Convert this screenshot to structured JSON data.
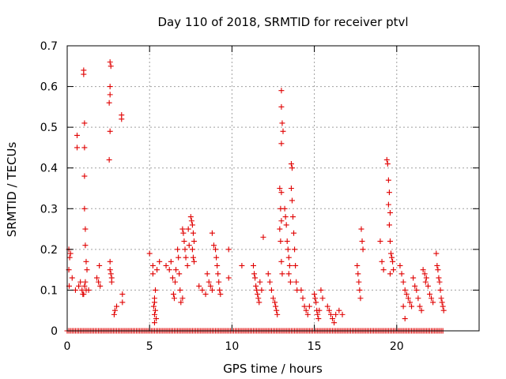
{
  "chart_data": {
    "type": "scatter",
    "title": "Day 110 of 2018, SRMTID for receiver ptvl",
    "xlabel": "GPS time / hours",
    "ylabel": "SRMTID / TECUs",
    "xlim": [
      0,
      25
    ],
    "ylim": [
      0,
      0.7
    ],
    "x_ticks": [
      0,
      5,
      10,
      15,
      20
    ],
    "y_ticks": [
      0,
      0.1,
      0.2,
      0.3,
      0.4,
      0.5,
      0.6,
      0.7
    ],
    "x_tick_labels": [
      "0",
      "5",
      "10",
      "15",
      "20"
    ],
    "y_tick_labels": [
      "0",
      "0.1",
      "0.2",
      "0.3",
      "0.4",
      "0.5",
      "0.6",
      "0.7"
    ],
    "grid": true,
    "marker": "+",
    "series": [
      {
        "name": "SRMTID",
        "color": "#e00000",
        "points": [
          [
            0.1,
            0.2
          ],
          [
            0.15,
            0.18
          ],
          [
            0.2,
            0.19
          ],
          [
            0.1,
            0.15
          ],
          [
            0.12,
            0.11
          ],
          [
            0.3,
            0.13
          ],
          [
            0.6,
            0.48
          ],
          [
            0.6,
            0.45
          ],
          [
            0.5,
            0.1
          ],
          [
            0.7,
            0.11
          ],
          [
            0.8,
            0.12
          ],
          [
            0.9,
            0.1
          ],
          [
            0.95,
            0.09
          ],
          [
            1.0,
            0.09
          ],
          [
            1.05,
            0.11
          ],
          [
            1.1,
            0.12
          ],
          [
            1.0,
            0.64
          ],
          [
            1.0,
            0.63
          ],
          [
            1.05,
            0.51
          ],
          [
            1.05,
            0.45
          ],
          [
            1.05,
            0.38
          ],
          [
            1.05,
            0.3
          ],
          [
            1.1,
            0.25
          ],
          [
            1.1,
            0.21
          ],
          [
            1.15,
            0.17
          ],
          [
            1.2,
            0.15
          ],
          [
            1.15,
            0.1
          ],
          [
            1.3,
            0.1
          ],
          [
            1.8,
            0.13
          ],
          [
            1.9,
            0.12
          ],
          [
            1.95,
            0.16
          ],
          [
            2.0,
            0.11
          ],
          [
            2.6,
            0.66
          ],
          [
            2.65,
            0.65
          ],
          [
            2.6,
            0.6
          ],
          [
            2.6,
            0.58
          ],
          [
            2.55,
            0.56
          ],
          [
            2.6,
            0.49
          ],
          [
            2.55,
            0.42
          ],
          [
            2.6,
            0.17
          ],
          [
            2.6,
            0.15
          ],
          [
            2.65,
            0.14
          ],
          [
            2.7,
            0.13
          ],
          [
            2.7,
            0.12
          ],
          [
            2.9,
            0.05
          ],
          [
            2.85,
            0.04
          ],
          [
            3.0,
            0.06
          ],
          [
            3.3,
            0.53
          ],
          [
            3.3,
            0.52
          ],
          [
            3.35,
            0.07
          ],
          [
            3.35,
            0.09
          ],
          [
            5.0,
            0.19
          ],
          [
            5.2,
            0.16
          ],
          [
            5.2,
            0.14
          ],
          [
            5.3,
            0.08
          ],
          [
            5.3,
            0.07
          ],
          [
            5.25,
            0.06
          ],
          [
            5.35,
            0.05
          ],
          [
            5.3,
            0.04
          ],
          [
            5.4,
            0.03
          ],
          [
            5.3,
            0.02
          ],
          [
            5.35,
            0.1
          ],
          [
            5.45,
            0.15
          ],
          [
            5.6,
            0.17
          ],
          [
            6.0,
            0.16
          ],
          [
            6.2,
            0.15
          ],
          [
            6.3,
            0.17
          ],
          [
            6.4,
            0.13
          ],
          [
            6.45,
            0.09
          ],
          [
            6.5,
            0.08
          ],
          [
            6.55,
            0.12
          ],
          [
            6.6,
            0.15
          ],
          [
            6.7,
            0.2
          ],
          [
            6.75,
            0.18
          ],
          [
            6.8,
            0.14
          ],
          [
            6.85,
            0.1
          ],
          [
            6.9,
            0.07
          ],
          [
            7.0,
            0.25
          ],
          [
            7.05,
            0.24
          ],
          [
            7.1,
            0.22
          ],
          [
            7.15,
            0.2
          ],
          [
            7.2,
            0.18
          ],
          [
            7.3,
            0.16
          ],
          [
            7.35,
            0.25
          ],
          [
            7.4,
            0.21
          ],
          [
            7.0,
            0.08
          ],
          [
            7.5,
            0.28
          ],
          [
            7.55,
            0.27
          ],
          [
            7.6,
            0.26
          ],
          [
            7.65,
            0.24
          ],
          [
            7.7,
            0.22
          ],
          [
            7.6,
            0.2
          ],
          [
            7.65,
            0.18
          ],
          [
            7.7,
            0.17
          ],
          [
            8.0,
            0.11
          ],
          [
            8.2,
            0.1
          ],
          [
            8.4,
            0.09
          ],
          [
            8.5,
            0.14
          ],
          [
            8.6,
            0.12
          ],
          [
            8.7,
            0.11
          ],
          [
            8.8,
            0.1
          ],
          [
            8.8,
            0.24
          ],
          [
            8.9,
            0.21
          ],
          [
            9.0,
            0.2
          ],
          [
            9.05,
            0.18
          ],
          [
            9.1,
            0.16
          ],
          [
            9.15,
            0.14
          ],
          [
            9.2,
            0.12
          ],
          [
            9.25,
            0.1
          ],
          [
            9.3,
            0.09
          ],
          [
            9.8,
            0.2
          ],
          [
            9.8,
            0.13
          ],
          [
            10.6,
            0.16
          ],
          [
            11.3,
            0.16
          ],
          [
            11.35,
            0.14
          ],
          [
            11.4,
            0.13
          ],
          [
            11.45,
            0.11
          ],
          [
            11.5,
            0.1
          ],
          [
            11.55,
            0.09
          ],
          [
            11.6,
            0.08
          ],
          [
            11.65,
            0.07
          ],
          [
            11.7,
            0.12
          ],
          [
            11.8,
            0.1
          ],
          [
            11.9,
            0.23
          ],
          [
            12.2,
            0.14
          ],
          [
            12.3,
            0.12
          ],
          [
            12.4,
            0.1
          ],
          [
            12.5,
            0.08
          ],
          [
            12.6,
            0.07
          ],
          [
            12.65,
            0.06
          ],
          [
            12.7,
            0.05
          ],
          [
            12.75,
            0.04
          ],
          [
            12.9,
            0.35
          ],
          [
            13.0,
            0.34
          ],
          [
            12.95,
            0.3
          ],
          [
            13.0,
            0.27
          ],
          [
            12.9,
            0.25
          ],
          [
            12.95,
            0.22
          ],
          [
            13.0,
            0.17
          ],
          [
            13.05,
            0.14
          ],
          [
            13.0,
            0.59
          ],
          [
            13.0,
            0.55
          ],
          [
            13.05,
            0.51
          ],
          [
            13.0,
            0.46
          ],
          [
            13.1,
            0.49
          ],
          [
            13.2,
            0.3
          ],
          [
            13.25,
            0.28
          ],
          [
            13.3,
            0.26
          ],
          [
            13.35,
            0.22
          ],
          [
            13.4,
            0.2
          ],
          [
            13.45,
            0.18
          ],
          [
            13.5,
            0.16
          ],
          [
            13.45,
            0.14
          ],
          [
            13.55,
            0.12
          ],
          [
            13.6,
            0.41
          ],
          [
            13.65,
            0.4
          ],
          [
            13.6,
            0.35
          ],
          [
            13.65,
            0.32
          ],
          [
            13.7,
            0.28
          ],
          [
            13.75,
            0.24
          ],
          [
            13.8,
            0.2
          ],
          [
            13.85,
            0.16
          ],
          [
            13.9,
            0.12
          ],
          [
            13.95,
            0.1
          ],
          [
            14.2,
            0.1
          ],
          [
            14.3,
            0.08
          ],
          [
            14.4,
            0.06
          ],
          [
            14.5,
            0.05
          ],
          [
            14.6,
            0.04
          ],
          [
            14.7,
            0.06
          ],
          [
            15.0,
            0.09
          ],
          [
            15.05,
            0.08
          ],
          [
            15.1,
            0.07
          ],
          [
            15.15,
            0.05
          ],
          [
            15.2,
            0.04
          ],
          [
            15.25,
            0.03
          ],
          [
            15.3,
            0.05
          ],
          [
            15.4,
            0.1
          ],
          [
            15.5,
            0.08
          ],
          [
            15.8,
            0.06
          ],
          [
            15.9,
            0.05
          ],
          [
            16.0,
            0.04
          ],
          [
            16.1,
            0.03
          ],
          [
            16.2,
            0.02
          ],
          [
            16.3,
            0.04
          ],
          [
            16.5,
            0.05
          ],
          [
            16.7,
            0.04
          ],
          [
            17.6,
            0.16
          ],
          [
            17.65,
            0.14
          ],
          [
            17.7,
            0.12
          ],
          [
            17.75,
            0.1
          ],
          [
            17.8,
            0.08
          ],
          [
            17.85,
            0.25
          ],
          [
            17.9,
            0.22
          ],
          [
            17.95,
            0.2
          ],
          [
            19.0,
            0.22
          ],
          [
            19.1,
            0.17
          ],
          [
            19.2,
            0.15
          ],
          [
            19.4,
            0.42
          ],
          [
            19.45,
            0.41
          ],
          [
            19.5,
            0.37
          ],
          [
            19.55,
            0.34
          ],
          [
            19.5,
            0.31
          ],
          [
            19.6,
            0.29
          ],
          [
            19.55,
            0.26
          ],
          [
            19.6,
            0.22
          ],
          [
            19.65,
            0.19
          ],
          [
            19.7,
            0.18
          ],
          [
            19.75,
            0.17
          ],
          [
            19.8,
            0.15
          ],
          [
            19.6,
            0.14
          ],
          [
            20.2,
            0.16
          ],
          [
            20.3,
            0.14
          ],
          [
            20.4,
            0.12
          ],
          [
            20.5,
            0.1
          ],
          [
            20.6,
            0.09
          ],
          [
            20.7,
            0.08
          ],
          [
            20.8,
            0.07
          ],
          [
            20.9,
            0.06
          ],
          [
            20.5,
            0.03
          ],
          [
            20.4,
            0.06
          ],
          [
            21.0,
            0.13
          ],
          [
            21.1,
            0.11
          ],
          [
            21.2,
            0.1
          ],
          [
            21.3,
            0.08
          ],
          [
            21.4,
            0.06
          ],
          [
            21.5,
            0.05
          ],
          [
            21.6,
            0.15
          ],
          [
            21.7,
            0.14
          ],
          [
            21.75,
            0.12
          ],
          [
            21.8,
            0.13
          ],
          [
            21.9,
            0.11
          ],
          [
            22.0,
            0.09
          ],
          [
            22.1,
            0.08
          ],
          [
            22.2,
            0.07
          ],
          [
            22.4,
            0.19
          ],
          [
            22.45,
            0.16
          ],
          [
            22.5,
            0.15
          ],
          [
            22.55,
            0.13
          ],
          [
            22.6,
            0.12
          ],
          [
            22.65,
            0.1
          ],
          [
            22.7,
            0.08
          ],
          [
            22.75,
            0.07
          ],
          [
            22.8,
            0.06
          ],
          [
            22.85,
            0.05
          ]
        ],
        "zero_baseline_range": [
          0,
          22.8
        ]
      }
    ]
  }
}
